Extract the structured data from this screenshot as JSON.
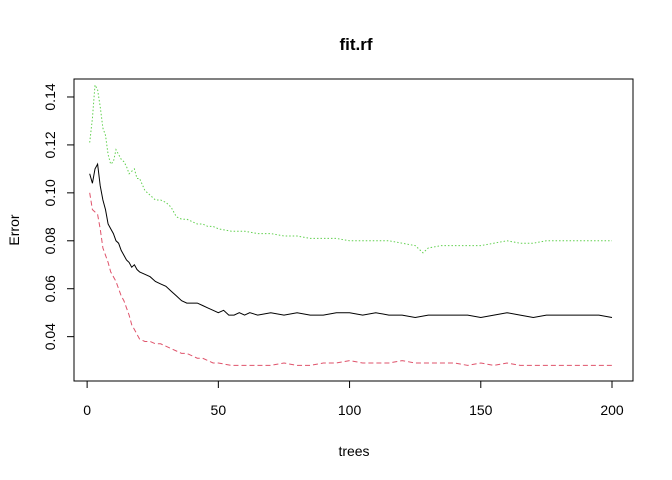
{
  "chart_data": {
    "type": "line",
    "title": "fit.rf",
    "xlabel": "trees",
    "ylabel": "Error",
    "xlim": [
      -5,
      208
    ],
    "ylim": [
      0.0215,
      0.1475
    ],
    "x_ticks": [
      0,
      50,
      100,
      150,
      200
    ],
    "y_ticks": [
      0.04,
      0.06,
      0.08,
      0.1,
      0.12,
      0.14
    ],
    "y_tick_labels": [
      "0.04",
      "0.06",
      "0.08",
      "0.10",
      "0.12",
      "0.14"
    ],
    "grid": false,
    "legend": "none",
    "series": [
      {
        "color": "#000000",
        "dash": "solid",
        "points": [
          [
            1,
            0.108
          ],
          [
            2,
            0.104
          ],
          [
            3,
            0.11
          ],
          [
            4,
            0.112
          ],
          [
            5,
            0.103
          ],
          [
            6,
            0.097
          ],
          [
            7,
            0.093
          ],
          [
            8,
            0.087
          ],
          [
            9,
            0.085
          ],
          [
            10,
            0.083
          ],
          [
            11,
            0.08
          ],
          [
            12,
            0.079
          ],
          [
            13,
            0.076
          ],
          [
            14,
            0.074
          ],
          [
            15,
            0.072
          ],
          [
            16,
            0.071
          ],
          [
            17,
            0.069
          ],
          [
            18,
            0.07
          ],
          [
            19,
            0.068
          ],
          [
            20,
            0.067
          ],
          [
            22,
            0.066
          ],
          [
            24,
            0.065
          ],
          [
            26,
            0.063
          ],
          [
            28,
            0.062
          ],
          [
            30,
            0.061
          ],
          [
            32,
            0.059
          ],
          [
            34,
            0.057
          ],
          [
            36,
            0.055
          ],
          [
            38,
            0.054
          ],
          [
            40,
            0.054
          ],
          [
            42,
            0.054
          ],
          [
            44,
            0.053
          ],
          [
            46,
            0.052
          ],
          [
            48,
            0.051
          ],
          [
            50,
            0.05
          ],
          [
            52,
            0.051
          ],
          [
            54,
            0.049
          ],
          [
            56,
            0.049
          ],
          [
            58,
            0.05
          ],
          [
            60,
            0.049
          ],
          [
            62,
            0.05
          ],
          [
            65,
            0.049
          ],
          [
            70,
            0.05
          ],
          [
            75,
            0.049
          ],
          [
            80,
            0.05
          ],
          [
            85,
            0.049
          ],
          [
            90,
            0.049
          ],
          [
            95,
            0.05
          ],
          [
            100,
            0.05
          ],
          [
            105,
            0.049
          ],
          [
            110,
            0.05
          ],
          [
            115,
            0.049
          ],
          [
            120,
            0.049
          ],
          [
            125,
            0.048
          ],
          [
            130,
            0.049
          ],
          [
            135,
            0.049
          ],
          [
            140,
            0.049
          ],
          [
            145,
            0.049
          ],
          [
            150,
            0.048
          ],
          [
            155,
            0.049
          ],
          [
            160,
            0.05
          ],
          [
            165,
            0.049
          ],
          [
            170,
            0.048
          ],
          [
            175,
            0.049
          ],
          [
            180,
            0.049
          ],
          [
            185,
            0.049
          ],
          [
            190,
            0.049
          ],
          [
            195,
            0.049
          ],
          [
            200,
            0.048
          ]
        ]
      },
      {
        "color": "#DF536B",
        "dash": "dashed",
        "points": [
          [
            1,
            0.1
          ],
          [
            2,
            0.093
          ],
          [
            3,
            0.092
          ],
          [
            4,
            0.091
          ],
          [
            5,
            0.085
          ],
          [
            6,
            0.077
          ],
          [
            7,
            0.074
          ],
          [
            8,
            0.071
          ],
          [
            9,
            0.067
          ],
          [
            10,
            0.065
          ],
          [
            11,
            0.063
          ],
          [
            12,
            0.06
          ],
          [
            13,
            0.057
          ],
          [
            14,
            0.055
          ],
          [
            15,
            0.052
          ],
          [
            16,
            0.049
          ],
          [
            17,
            0.045
          ],
          [
            18,
            0.043
          ],
          [
            19,
            0.041
          ],
          [
            20,
            0.039
          ],
          [
            22,
            0.038
          ],
          [
            24,
            0.038
          ],
          [
            26,
            0.037
          ],
          [
            28,
            0.037
          ],
          [
            30,
            0.036
          ],
          [
            32,
            0.035
          ],
          [
            34,
            0.034
          ],
          [
            36,
            0.033
          ],
          [
            38,
            0.033
          ],
          [
            40,
            0.032
          ],
          [
            42,
            0.031
          ],
          [
            44,
            0.031
          ],
          [
            46,
            0.03
          ],
          [
            48,
            0.029
          ],
          [
            50,
            0.029
          ],
          [
            55,
            0.028
          ],
          [
            60,
            0.028
          ],
          [
            65,
            0.028
          ],
          [
            70,
            0.028
          ],
          [
            75,
            0.029
          ],
          [
            80,
            0.028
          ],
          [
            85,
            0.028
          ],
          [
            90,
            0.029
          ],
          [
            95,
            0.029
          ],
          [
            100,
            0.03
          ],
          [
            105,
            0.029
          ],
          [
            110,
            0.029
          ],
          [
            115,
            0.029
          ],
          [
            120,
            0.03
          ],
          [
            125,
            0.029
          ],
          [
            130,
            0.029
          ],
          [
            135,
            0.029
          ],
          [
            140,
            0.029
          ],
          [
            145,
            0.028
          ],
          [
            150,
            0.029
          ],
          [
            155,
            0.028
          ],
          [
            160,
            0.029
          ],
          [
            165,
            0.028
          ],
          [
            170,
            0.028
          ],
          [
            175,
            0.028
          ],
          [
            180,
            0.028
          ],
          [
            185,
            0.028
          ],
          [
            190,
            0.028
          ],
          [
            195,
            0.028
          ],
          [
            200,
            0.028
          ]
        ]
      },
      {
        "color": "#61D04F",
        "dash": "dotted",
        "points": [
          [
            1,
            0.121
          ],
          [
            2,
            0.131
          ],
          [
            3,
            0.145
          ],
          [
            4,
            0.143
          ],
          [
            5,
            0.136
          ],
          [
            6,
            0.127
          ],
          [
            7,
            0.124
          ],
          [
            8,
            0.116
          ],
          [
            9,
            0.112
          ],
          [
            10,
            0.113
          ],
          [
            11,
            0.118
          ],
          [
            12,
            0.116
          ],
          [
            13,
            0.114
          ],
          [
            14,
            0.113
          ],
          [
            15,
            0.111
          ],
          [
            16,
            0.108
          ],
          [
            17,
            0.109
          ],
          [
            18,
            0.11
          ],
          [
            19,
            0.106
          ],
          [
            20,
            0.106
          ],
          [
            22,
            0.101
          ],
          [
            24,
            0.099
          ],
          [
            26,
            0.097
          ],
          [
            28,
            0.097
          ],
          [
            30,
            0.096
          ],
          [
            32,
            0.094
          ],
          [
            34,
            0.09
          ],
          [
            36,
            0.089
          ],
          [
            38,
            0.089
          ],
          [
            40,
            0.088
          ],
          [
            42,
            0.087
          ],
          [
            44,
            0.087
          ],
          [
            46,
            0.086
          ],
          [
            48,
            0.086
          ],
          [
            50,
            0.085
          ],
          [
            55,
            0.084
          ],
          [
            60,
            0.084
          ],
          [
            65,
            0.083
          ],
          [
            70,
            0.083
          ],
          [
            75,
            0.082
          ],
          [
            80,
            0.082
          ],
          [
            85,
            0.081
          ],
          [
            90,
            0.081
          ],
          [
            95,
            0.081
          ],
          [
            100,
            0.08
          ],
          [
            105,
            0.08
          ],
          [
            110,
            0.08
          ],
          [
            115,
            0.08
          ],
          [
            120,
            0.079
          ],
          [
            125,
            0.078
          ],
          [
            128,
            0.075
          ],
          [
            130,
            0.077
          ],
          [
            135,
            0.078
          ],
          [
            140,
            0.078
          ],
          [
            145,
            0.078
          ],
          [
            150,
            0.078
          ],
          [
            155,
            0.079
          ],
          [
            160,
            0.08
          ],
          [
            165,
            0.079
          ],
          [
            170,
            0.079
          ],
          [
            175,
            0.08
          ],
          [
            180,
            0.08
          ],
          [
            185,
            0.08
          ],
          [
            190,
            0.08
          ],
          [
            195,
            0.08
          ],
          [
            200,
            0.08
          ]
        ]
      }
    ]
  }
}
